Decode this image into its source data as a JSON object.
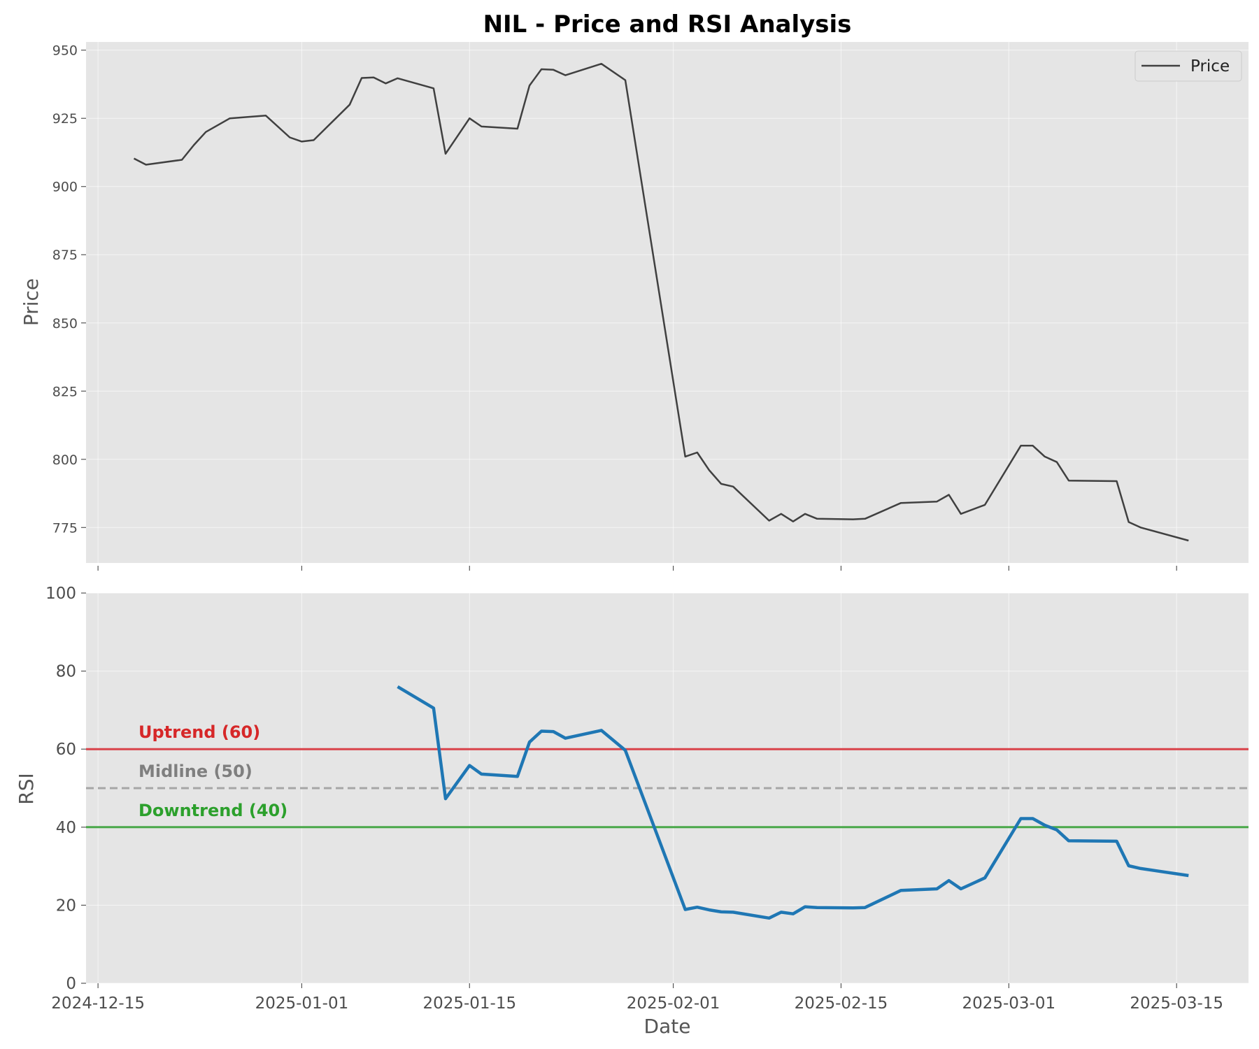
{
  "title": "NIL - Price and RSI Analysis",
  "chart_data": [
    {
      "panel": "price",
      "type": "line",
      "ylabel": "Price",
      "ylim": [
        762,
        953
      ],
      "yticks": [
        775,
        800,
        825,
        850,
        875,
        900,
        925,
        950
      ],
      "grid": true,
      "legend": {
        "placement": "top-right",
        "entries": [
          "Price"
        ]
      },
      "series": [
        {
          "name": "Price",
          "color": "#404040",
          "x": [
            "2024-12-18",
            "2024-12-19",
            "2024-12-22",
            "2024-12-23",
            "2024-12-24",
            "2024-12-26",
            "2024-12-29",
            "2024-12-31",
            "2025-01-01",
            "2025-01-02",
            "2025-01-05",
            "2025-01-06",
            "2025-01-07",
            "2025-01-08",
            "2025-01-09",
            "2025-01-12",
            "2025-01-13",
            "2025-01-15",
            "2025-01-16",
            "2025-01-19",
            "2025-01-20",
            "2025-01-21",
            "2025-01-22",
            "2025-01-23",
            "2025-01-26",
            "2025-01-28",
            "2025-02-02",
            "2025-02-03",
            "2025-02-04",
            "2025-02-05",
            "2025-02-06",
            "2025-02-09",
            "2025-02-10",
            "2025-02-11",
            "2025-02-12",
            "2025-02-13",
            "2025-02-16",
            "2025-02-17",
            "2025-02-20",
            "2025-02-23",
            "2025-02-24",
            "2025-02-25",
            "2025-02-27",
            "2025-03-02",
            "2025-03-03",
            "2025-03-04",
            "2025-03-05",
            "2025-03-06",
            "2025-03-10",
            "2025-03-11",
            "2025-03-12",
            "2025-03-16"
          ],
          "values": [
            910.3,
            908.0,
            909.8,
            915.2,
            920.0,
            925.0,
            926.0,
            918.0,
            916.5,
            917.0,
            930.0,
            939.8,
            940.0,
            937.8,
            939.7,
            936.0,
            912.0,
            925.0,
            922.0,
            921.2,
            937.0,
            943.0,
            942.8,
            940.8,
            945.0,
            939.0,
            801.0,
            802.5,
            796.0,
            791.0,
            790.0,
            777.5,
            780.0,
            777.2,
            780.0,
            778.2,
            778.0,
            778.2,
            784.0,
            784.5,
            787.0,
            780.0,
            783.3,
            805.0,
            805.0,
            801.0,
            799.0,
            792.2,
            792.0,
            777.0,
            775.0,
            770.2
          ]
        }
      ]
    },
    {
      "panel": "rsi",
      "type": "line",
      "xlabel": "Date",
      "ylabel": "RSI",
      "ylim": [
        0,
        100
      ],
      "yticks": [
        0,
        20,
        40,
        60,
        80,
        100
      ],
      "xlim": [
        "2024-12-14",
        "2025-03-21"
      ],
      "xticks": [
        "2024-12-15",
        "2025-01-01",
        "2025-01-15",
        "2025-02-01",
        "2025-02-15",
        "2025-03-01",
        "2025-03-15"
      ],
      "grid": true,
      "series": [
        {
          "name": "RSI",
          "color": "#1f77b4",
          "x": [
            "2025-01-09",
            "2025-01-12",
            "2025-01-13",
            "2025-01-15",
            "2025-01-16",
            "2025-01-19",
            "2025-01-20",
            "2025-01-21",
            "2025-01-22",
            "2025-01-23",
            "2025-01-26",
            "2025-01-28",
            "2025-02-02",
            "2025-02-03",
            "2025-02-04",
            "2025-02-05",
            "2025-02-06",
            "2025-02-09",
            "2025-02-10",
            "2025-02-11",
            "2025-02-12",
            "2025-02-13",
            "2025-02-16",
            "2025-02-17",
            "2025-02-20",
            "2025-02-23",
            "2025-02-24",
            "2025-02-25",
            "2025-02-27",
            "2025-03-02",
            "2025-03-03",
            "2025-03-04",
            "2025-03-05",
            "2025-03-06",
            "2025-03-10",
            "2025-03-11",
            "2025-03-12",
            "2025-03-16"
          ],
          "values": [
            76.0,
            70.5,
            47.3,
            55.8,
            53.6,
            53.0,
            61.8,
            64.6,
            64.5,
            62.8,
            64.8,
            59.7,
            18.9,
            19.5,
            18.8,
            18.3,
            18.2,
            16.7,
            18.2,
            17.8,
            19.6,
            19.4,
            19.3,
            19.4,
            23.8,
            24.2,
            26.3,
            24.2,
            27.0,
            42.2,
            42.2,
            40.5,
            39.3,
            36.5,
            36.4,
            30.1,
            29.4,
            27.6
          ]
        }
      ],
      "reference_lines": [
        {
          "value": 60,
          "label": "Uptrend (60)",
          "color": "#d62728",
          "line_color": "#d9424a",
          "style": "solid"
        },
        {
          "value": 50,
          "label": "Midline (50)",
          "color": "#7f7f7f",
          "line_color": "#a6a6a6",
          "style": "dashed"
        },
        {
          "value": 40,
          "label": "Downtrend (40)",
          "color": "#2ca02c",
          "line_color": "#4aa84a",
          "style": "solid"
        }
      ]
    }
  ]
}
